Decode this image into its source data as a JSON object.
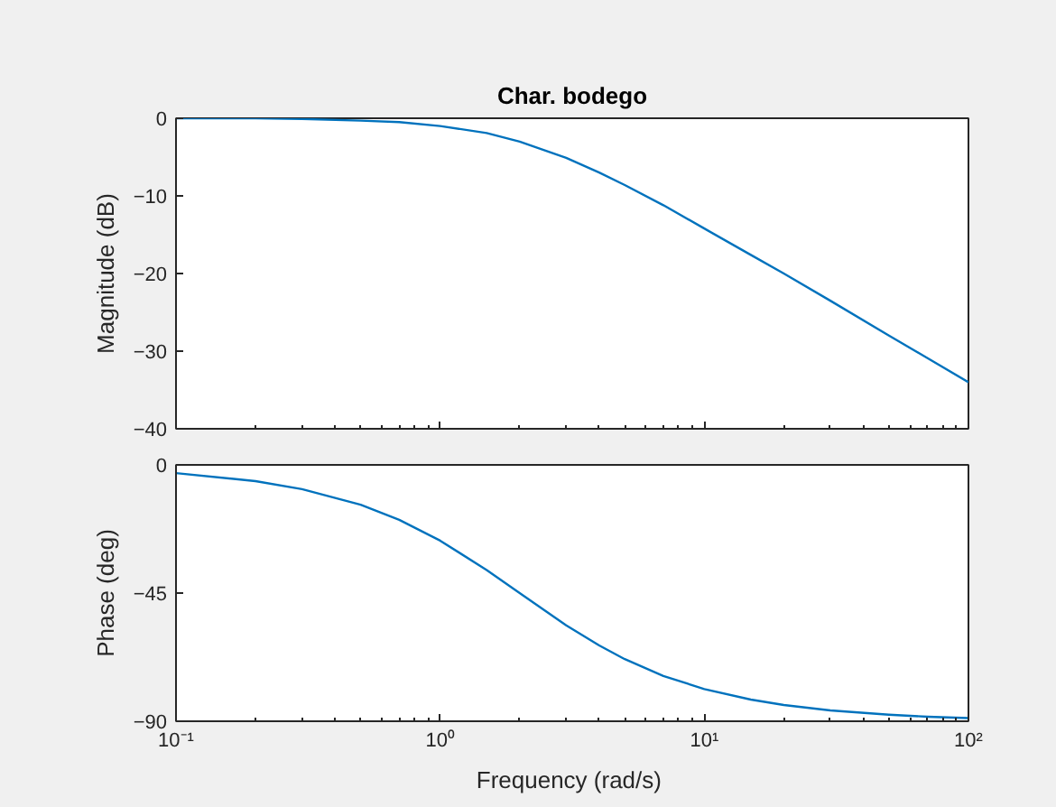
{
  "chart_data": [
    {
      "type": "line",
      "title": "Char. bodego",
      "ylabel": "Magnitude (dB)",
      "log": "x",
      "x": [
        0.1,
        0.2,
        0.3,
        0.5,
        0.7,
        1,
        1.5,
        2,
        3,
        4,
        5,
        7,
        10,
        15,
        20,
        30,
        50,
        70,
        100
      ],
      "series": [
        {
          "color": "#0072bd",
          "values": [
            0.0,
            0.0,
            -0.1,
            -0.3,
            -0.5,
            -1.0,
            -1.9,
            -3.0,
            -5.1,
            -7.0,
            -8.6,
            -11.2,
            -14.2,
            -17.6,
            -20.0,
            -23.5,
            -28.0,
            -30.9,
            -34.0
          ]
        }
      ],
      "xlim": [
        0.1,
        100
      ],
      "xticks": [
        {
          "value": 0.1,
          "label": null
        },
        {
          "value": 1,
          "label": null
        },
        {
          "value": 10,
          "label": null
        },
        {
          "value": 100,
          "label": null
        }
      ],
      "ylim": [
        -40,
        0
      ],
      "yticks": [
        -40,
        -30,
        -20,
        -10,
        0
      ],
      "tick_labels": "y",
      "grid": false,
      "line_style": "solid"
    },
    {
      "type": "line",
      "xlabel": "Frequency  (rad/s)",
      "ylabel": "Phase (deg)",
      "log": "x",
      "x": [
        0.1,
        0.2,
        0.3,
        0.5,
        0.7,
        1,
        1.5,
        2,
        3,
        4,
        5,
        7,
        10,
        15,
        20,
        30,
        50,
        70,
        100
      ],
      "series": [
        {
          "color": "#0072bd",
          "values": [
            -2.9,
            -5.7,
            -8.5,
            -14.0,
            -19.3,
            -26.6,
            -36.9,
            -45.0,
            -56.3,
            -63.4,
            -68.2,
            -74.1,
            -78.7,
            -82.4,
            -84.3,
            -86.2,
            -87.7,
            -88.4,
            -88.9
          ]
        }
      ],
      "xlim": [
        0.1,
        100
      ],
      "xticks": [
        {
          "value": 0.1,
          "label": "10⁻¹"
        },
        {
          "value": 1,
          "label": "10⁰"
        },
        {
          "value": 10,
          "label": "10¹"
        },
        {
          "value": 100,
          "label": "10²"
        }
      ],
      "ylim": [
        -90,
        0
      ],
      "yticks": [
        -90,
        -45,
        0
      ],
      "grid": false,
      "line_style": "solid"
    }
  ]
}
